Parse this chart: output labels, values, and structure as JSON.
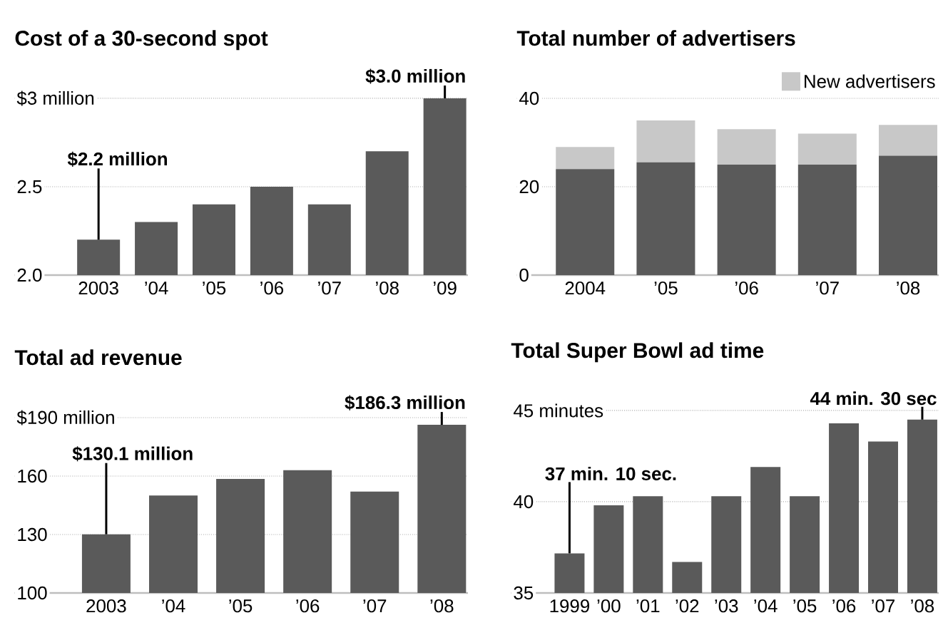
{
  "chart_data": [
    {
      "type": "bar",
      "title": "Cost of a 30-second spot",
      "categories": [
        "2003",
        "’04",
        "’05",
        "’06",
        "’07",
        "’08",
        "’09"
      ],
      "values": [
        2.2,
        2.3,
        2.4,
        2.5,
        2.4,
        2.7,
        3.0
      ],
      "color": "#5a5a5a",
      "ylim": [
        2,
        3
      ],
      "yticks": [
        {
          "value": 2,
          "label": "2.0"
        },
        2.5,
        {
          "value": 3,
          "label": "$3 million"
        }
      ],
      "grid": "y",
      "annotations": [
        {
          "text": "$2.2 million",
          "x": "2003",
          "y": 2.2
        },
        {
          "text": "$3.0 million",
          "x": "’09",
          "y": 3.0
        }
      ]
    },
    {
      "type": "bar",
      "title": "Total number of advertisers",
      "categories": [
        "2004",
        "’05",
        "’06",
        "’07",
        "’08"
      ],
      "stacked": true,
      "series": [
        {
          "color": "#5a5a5a",
          "values": [
            24,
            25.5,
            25,
            25,
            27
          ]
        },
        {
          "name": "New advertisers",
          "color": "#c8c8c8",
          "values": [
            5,
            9.5,
            8,
            7,
            7
          ]
        }
      ],
      "ylim": [
        0,
        40
      ],
      "yticks": [
        0,
        20,
        40
      ],
      "grid": "y",
      "legend": "top right"
    },
    {
      "type": "bar",
      "title": "Total ad revenue",
      "categories": [
        "2003",
        "’04",
        "’05",
        "’06",
        "’07",
        "’08"
      ],
      "values": [
        130.1,
        150,
        158.5,
        163,
        152,
        186.3
      ],
      "color": "#5a5a5a",
      "ylim": [
        100,
        190
      ],
      "yticks": [
        100,
        130,
        160,
        {
          "value": 190,
          "label": "$190 million"
        }
      ],
      "grid": "y",
      "annotations": [
        {
          "text": "$130.1 million",
          "x": "2003",
          "y": 130.1
        },
        {
          "text": "$186.3 million",
          "x": "’08",
          "y": 186.3
        }
      ]
    },
    {
      "type": "bar",
      "title": "Total Super Bowl ad time",
      "categories": [
        "1999",
        "’00",
        "’01",
        "’02",
        "’03",
        "’04",
        "’05",
        "’06",
        "’07",
        "’08"
      ],
      "values": [
        37.17,
        39.8,
        40.3,
        36.7,
        40.3,
        41.9,
        40.3,
        44.3,
        43.3,
        44.5
      ],
      "color": "#5a5a5a",
      "ylim": [
        35,
        45
      ],
      "yticks": [
        35,
        40,
        {
          "value": 45,
          "label": "45 minutes"
        }
      ],
      "grid": "y",
      "annotations": [
        {
          "text": "37 min. 10 sec.",
          "x": "1999",
          "y": 37.17
        },
        {
          "text": "44 min. 30 sec",
          "x": "’08",
          "y": 44.5
        }
      ]
    }
  ]
}
